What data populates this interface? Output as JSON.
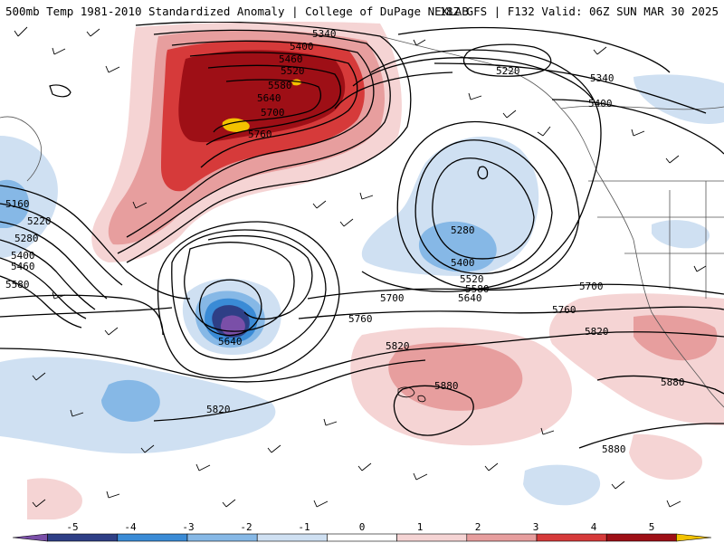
{
  "header": {
    "left_title": "500mb Temp 1981-2010 Standardized Anomaly | College of DuPage NEXLAB",
    "right_title": "18Z GFS | F132 Valid: 06Z SUN MAR 30 2025"
  },
  "colors": {
    "neg5": "#7a4fa8",
    "neg4": "#2e3f86",
    "neg3": "#3a8bd6",
    "neg2": "#86b8e6",
    "neg1": "#cfe0f2",
    "zero": "#ffffff",
    "pos1": "#f5d4d4",
    "pos2": "#e79e9e",
    "pos3": "#d63a3a",
    "pos4": "#9e0f16",
    "pos5": "#f2c200"
  },
  "colorbar": {
    "ticks": [
      "-5",
      "-4",
      "-3",
      "-2",
      "-1",
      "0",
      "1",
      "2",
      "3",
      "4",
      "5"
    ]
  },
  "height_labels": {
    "h5340a": "5340",
    "h5400a": "5400",
    "h5460a": "5460",
    "h5520a": "5520",
    "h5580a": "5580",
    "h5640a": "5640",
    "h5700a": "5700",
    "h5760a": "5760",
    "h5220b": "5220",
    "h5340b": "5340",
    "h5400b": "5400",
    "h5160c": "5160",
    "h5220c": "5220",
    "h5280c": "5280",
    "h5400c": "5400",
    "h5460c": "5460",
    "h5580c": "5580",
    "h5280d": "5280",
    "h5400d": "5400",
    "h5520d": "5520",
    "h5580d": "5580",
    "h5640d": "5640",
    "h5700d": "5700",
    "h5700e": "5700",
    "h5640f": "5640",
    "h5760g": "5760",
    "h5760h": "5760",
    "h5820a": "5820",
    "h5820b": "5820",
    "h5820c": "5820",
    "h5880a": "5880",
    "h5880b": "5880",
    "h5880c": "5880"
  }
}
